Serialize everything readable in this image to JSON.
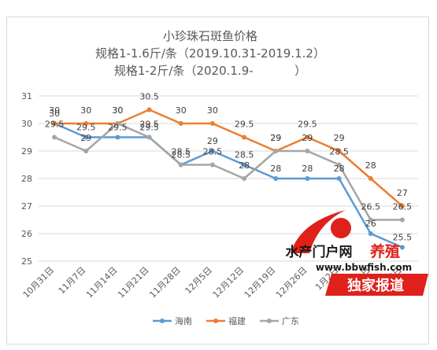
{
  "chart_data": {
    "type": "line",
    "title": "小珍珠石斑鱼价格",
    "subtitle_lines": [
      "规格1-1.6斤/条（2019.10.31-2019.1.2）",
      "规格1-2斤/条（2020.1.9-           ）"
    ],
    "categories": [
      "10月31日",
      "11月7日",
      "11月14日",
      "11月21日",
      "11月28日",
      "12月5日",
      "12月12日",
      "12月19日",
      "12月26日",
      "1月2日",
      "1月9日",
      "1月16日"
    ],
    "ylim": [
      25,
      31
    ],
    "yticks": [
      25,
      26,
      27,
      28,
      29,
      30,
      31
    ],
    "grid": true,
    "legend_position": "bottom",
    "series": [
      {
        "name": "海南",
        "color": "#5b9bd5",
        "values": [
          30,
          29.5,
          29.5,
          29.5,
          28.5,
          29,
          28.5,
          28,
          28,
          28,
          26,
          25.5
        ]
      },
      {
        "name": "福建",
        "color": "#ed7d31",
        "values": [
          30,
          30,
          30,
          30.5,
          30,
          30,
          29.5,
          29,
          29.5,
          29,
          28,
          27
        ]
      },
      {
        "name": "广东",
        "color": "#a5a5a5",
        "values": [
          29.5,
          29,
          30,
          29.5,
          28.5,
          28.5,
          28,
          29,
          29,
          28.5,
          26.5,
          26.5
        ]
      }
    ]
  },
  "watermark": {
    "line1_dark": "水产门户网",
    "line1_red": "养殖",
    "url": "www.bbwfish.com",
    "tag": "独家报道"
  }
}
